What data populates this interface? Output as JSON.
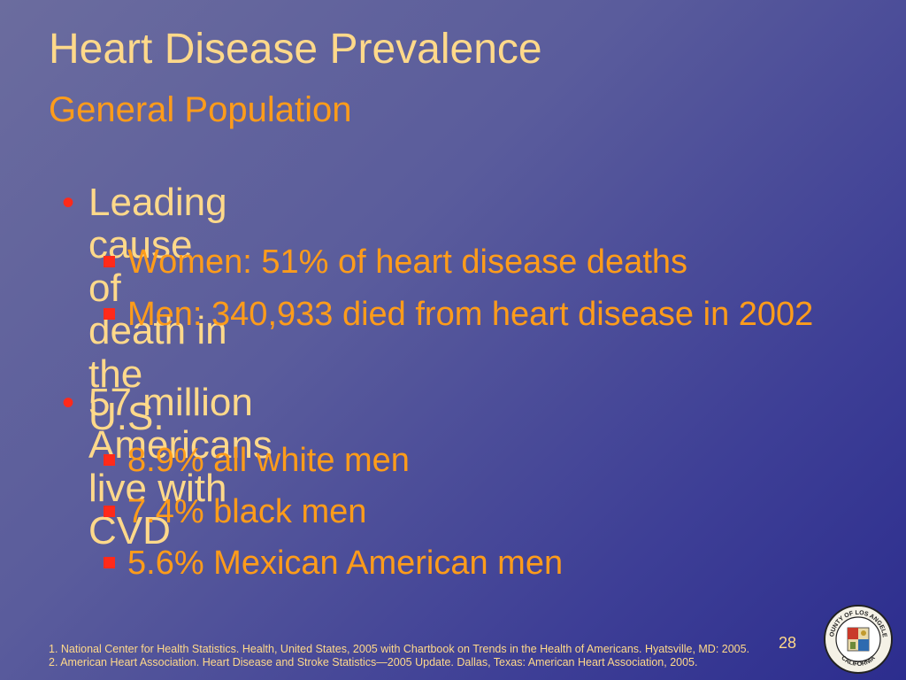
{
  "slide": {
    "title": "Heart Disease Prevalence",
    "subtitle": "General Population",
    "bullets": [
      {
        "text": "Leading cause of death in the U.S.",
        "subs": [
          "Women: 51% of heart disease deaths",
          "Men: 340,933 died from heart disease in 2002"
        ]
      },
      {
        "text": "57 million Americans live with CVD",
        "subs": [
          "8.9% all white men",
          "7.4% black men",
          "5.6% Mexican American men"
        ]
      }
    ],
    "footnotes": [
      "1. National Center for Health Statistics. Health, United States, 2005 with Chartbook on Trends in the Health of Americans. Hyatsville, MD: 2005.",
      "2. American Heart Association. Heart Disease and Stroke Statistics—2005 Update. Dallas, Texas: American Heart Association, 2005."
    ],
    "page_number": "28",
    "seal": {
      "top_text": "COUNTY OF LOS ANGELES",
      "bottom_text": "CALIFORNIA"
    }
  },
  "colors": {
    "title": "#ffd98a",
    "accent": "#ff9c1a",
    "bullet": "#ff2a1a"
  }
}
